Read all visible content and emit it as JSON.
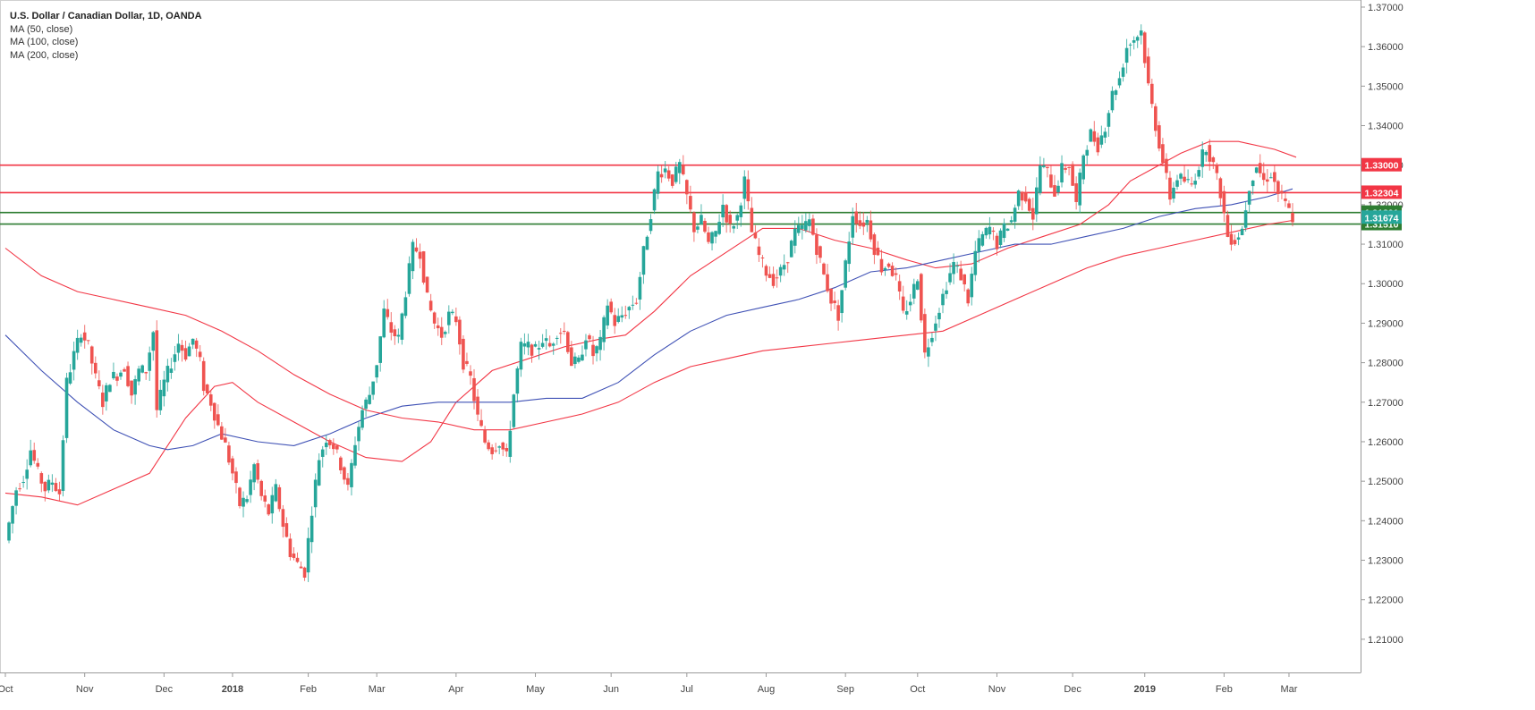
{
  "chart_data": {
    "type": "candlestick",
    "title": "U.S. Dollar / Canadian Dollar, 1D, OANDA",
    "indicators": [
      "MA (50, close)",
      "MA (100, close)",
      "MA (200, close)"
    ],
    "ylim": [
      1.2016,
      1.3718
    ],
    "y_ticks": [
      "1.37000",
      "1.36000",
      "1.35000",
      "1.34000",
      "1.33000",
      "1.32000",
      "1.31000",
      "1.30000",
      "1.29000",
      "1.28000",
      "1.27000",
      "1.26000",
      "1.25000",
      "1.24000",
      "1.23000",
      "1.22000",
      "1.21000"
    ],
    "x_ticks": [
      "Oct",
      "Nov",
      "Dec",
      "2018",
      "Feb",
      "Mar",
      "Apr",
      "May",
      "Jun",
      "Jul",
      "Aug",
      "Sep",
      "Oct",
      "Nov",
      "Dec",
      "2019",
      "Feb",
      "Mar"
    ],
    "x_tick_index": [
      0,
      22,
      44,
      63,
      84,
      103,
      125,
      147,
      168,
      189,
      211,
      233,
      253,
      275,
      296,
      316,
      338,
      356
    ],
    "x_range_bars": [
      0,
      381
    ],
    "horizontal_levels": [
      {
        "value": 1.33,
        "label": "1.33000",
        "color": "#f23645"
      },
      {
        "value": 1.32304,
        "label": "1.32304",
        "color": "#f23645"
      },
      {
        "value": 1.31801,
        "label": "1.31801",
        "color": "#2e7d32"
      },
      {
        "value": 1.3151,
        "label": "1.31510",
        "color": "#2e7d32"
      }
    ],
    "current_price": {
      "value": 1.31674,
      "label": "1.31674",
      "color": "#26a69a"
    },
    "close_series": [
      [
        0,
        1.235
      ],
      [
        3,
        1.248
      ],
      [
        5,
        1.251
      ],
      [
        7,
        1.258
      ],
      [
        9,
        1.252
      ],
      [
        11,
        1.248
      ],
      [
        13,
        1.25
      ],
      [
        15,
        1.247
      ],
      [
        17,
        1.275
      ],
      [
        19,
        1.282
      ],
      [
        21,
        1.288
      ],
      [
        23,
        1.284
      ],
      [
        25,
        1.276
      ],
      [
        27,
        1.27
      ],
      [
        29,
        1.276
      ],
      [
        31,
        1.277
      ],
      [
        33,
        1.279
      ],
      [
        35,
        1.272
      ],
      [
        37,
        1.278
      ],
      [
        39,
        1.278
      ],
      [
        41,
        1.288
      ],
      [
        42,
        1.268
      ],
      [
        44,
        1.275
      ],
      [
        46,
        1.28
      ],
      [
        48,
        1.285
      ],
      [
        50,
        1.282
      ],
      [
        52,
        1.286
      ],
      [
        54,
        1.28
      ],
      [
        55,
        1.274
      ],
      [
        57,
        1.27
      ],
      [
        59,
        1.264
      ],
      [
        61,
        1.259
      ],
      [
        63,
        1.252
      ],
      [
        65,
        1.244
      ],
      [
        67,
        1.246
      ],
      [
        69,
        1.254
      ],
      [
        71,
        1.246
      ],
      [
        73,
        1.242
      ],
      [
        75,
        1.248
      ],
      [
        77,
        1.239
      ],
      [
        79,
        1.232
      ],
      [
        81,
        1.229
      ],
      [
        83,
        1.227
      ],
      [
        85,
        1.243
      ],
      [
        87,
        1.256
      ],
      [
        89,
        1.261
      ],
      [
        91,
        1.259
      ],
      [
        93,
        1.254
      ],
      [
        95,
        1.248
      ],
      [
        97,
        1.26
      ],
      [
        99,
        1.268
      ],
      [
        101,
        1.272
      ],
      [
        103,
        1.28
      ],
      [
        105,
        1.293
      ],
      [
        107,
        1.288
      ],
      [
        109,
        1.286
      ],
      [
        111,
        1.298
      ],
      [
        113,
        1.309
      ],
      [
        115,
        1.308
      ],
      [
        117,
        1.296
      ],
      [
        119,
        1.29
      ],
      [
        121,
        1.287
      ],
      [
        123,
        1.292
      ],
      [
        125,
        1.291
      ],
      [
        127,
        1.28
      ],
      [
        129,
        1.276
      ],
      [
        131,
        1.266
      ],
      [
        133,
        1.26
      ],
      [
        135,
        1.258
      ],
      [
        137,
        1.26
      ],
      [
        139,
        1.256
      ],
      [
        141,
        1.272
      ],
      [
        143,
        1.284
      ],
      [
        145,
        1.284
      ],
      [
        147,
        1.283
      ],
      [
        149,
        1.286
      ],
      [
        151,
        1.284
      ],
      [
        153,
        1.288
      ],
      [
        155,
        1.288
      ],
      [
        157,
        1.28
      ],
      [
        159,
        1.28
      ],
      [
        161,
        1.287
      ],
      [
        163,
        1.282
      ],
      [
        165,
        1.285
      ],
      [
        167,
        1.295
      ],
      [
        169,
        1.29
      ],
      [
        171,
        1.292
      ],
      [
        173,
        1.294
      ],
      [
        175,
        1.296
      ],
      [
        177,
        1.308
      ],
      [
        179,
        1.318
      ],
      [
        181,
        1.328
      ],
      [
        183,
        1.329
      ],
      [
        185,
        1.326
      ],
      [
        187,
        1.33
      ],
      [
        189,
        1.322
      ],
      [
        191,
        1.314
      ],
      [
        193,
        1.316
      ],
      [
        195,
        1.31
      ],
      [
        197,
        1.313
      ],
      [
        199,
        1.32
      ],
      [
        201,
        1.314
      ],
      [
        203,
        1.317
      ],
      [
        205,
        1.326
      ],
      [
        207,
        1.313
      ],
      [
        209,
        1.307
      ],
      [
        211,
        1.303
      ],
      [
        213,
        1.301
      ],
      [
        215,
        1.303
      ],
      [
        217,
        1.307
      ],
      [
        219,
        1.313
      ],
      [
        221,
        1.314
      ],
      [
        223,
        1.316
      ],
      [
        225,
        1.309
      ],
      [
        227,
        1.302
      ],
      [
        229,
        1.296
      ],
      [
        231,
        1.292
      ],
      [
        233,
        1.305
      ],
      [
        235,
        1.318
      ],
      [
        237,
        1.315
      ],
      [
        239,
        1.316
      ],
      [
        241,
        1.309
      ],
      [
        243,
        1.304
      ],
      [
        245,
        1.305
      ],
      [
        247,
        1.301
      ],
      [
        249,
        1.292
      ],
      [
        251,
        1.296
      ],
      [
        253,
        1.302
      ],
      [
        255,
        1.282
      ],
      [
        257,
        1.288
      ],
      [
        259,
        1.294
      ],
      [
        261,
        1.3
      ],
      [
        263,
        1.305
      ],
      [
        265,
        1.302
      ],
      [
        267,
        1.296
      ],
      [
        269,
        1.308
      ],
      [
        271,
        1.312
      ],
      [
        273,
        1.314
      ],
      [
        275,
        1.31
      ],
      [
        277,
        1.314
      ],
      [
        279,
        1.316
      ],
      [
        281,
        1.323
      ],
      [
        283,
        1.322
      ],
      [
        285,
        1.317
      ],
      [
        287,
        1.33
      ],
      [
        289,
        1.328
      ],
      [
        291,
        1.323
      ],
      [
        293,
        1.329
      ],
      [
        295,
        1.33
      ],
      [
        297,
        1.32
      ],
      [
        299,
        1.333
      ],
      [
        301,
        1.338
      ],
      [
        303,
        1.335
      ],
      [
        305,
        1.34
      ],
      [
        307,
        1.348
      ],
      [
        309,
        1.352
      ],
      [
        311,
        1.36
      ],
      [
        313,
        1.362
      ],
      [
        315,
        1.364
      ],
      [
        317,
        1.35
      ],
      [
        319,
        1.34
      ],
      [
        321,
        1.331
      ],
      [
        323,
        1.322
      ],
      [
        325,
        1.327
      ],
      [
        327,
        1.326
      ],
      [
        329,
        1.325
      ],
      [
        331,
        1.33
      ],
      [
        333,
        1.335
      ],
      [
        335,
        1.33
      ],
      [
        337,
        1.323
      ],
      [
        339,
        1.312
      ],
      [
        341,
        1.311
      ],
      [
        343,
        1.314
      ],
      [
        345,
        1.325
      ],
      [
        347,
        1.33
      ],
      [
        349,
        1.326
      ],
      [
        351,
        1.328
      ],
      [
        353,
        1.323
      ],
      [
        355,
        1.32
      ],
      [
        357,
        1.3167
      ]
    ],
    "ma_series": [
      {
        "name": "MA (50, close)",
        "color": "#f23645",
        "points": [
          [
            0,
            1.247
          ],
          [
            10,
            1.246
          ],
          [
            20,
            1.244
          ],
          [
            30,
            1.248
          ],
          [
            40,
            1.252
          ],
          [
            50,
            1.266
          ],
          [
            58,
            1.274
          ],
          [
            63,
            1.275
          ],
          [
            70,
            1.27
          ],
          [
            80,
            1.265
          ],
          [
            90,
            1.26
          ],
          [
            100,
            1.256
          ],
          [
            110,
            1.255
          ],
          [
            118,
            1.26
          ],
          [
            125,
            1.27
          ],
          [
            135,
            1.278
          ],
          [
            145,
            1.281
          ],
          [
            155,
            1.284
          ],
          [
            165,
            1.286
          ],
          [
            172,
            1.287
          ],
          [
            180,
            1.293
          ],
          [
            190,
            1.302
          ],
          [
            200,
            1.308
          ],
          [
            210,
            1.314
          ],
          [
            220,
            1.314
          ],
          [
            230,
            1.311
          ],
          [
            240,
            1.309
          ],
          [
            250,
            1.306
          ],
          [
            258,
            1.304
          ],
          [
            268,
            1.305
          ],
          [
            278,
            1.309
          ],
          [
            288,
            1.312
          ],
          [
            298,
            1.315
          ],
          [
            306,
            1.32
          ],
          [
            312,
            1.326
          ],
          [
            318,
            1.329
          ],
          [
            326,
            1.333
          ],
          [
            334,
            1.336
          ],
          [
            342,
            1.336
          ],
          [
            352,
            1.334
          ],
          [
            358,
            1.332
          ]
        ]
      },
      {
        "name": "MA (100, close)",
        "color": "#3f51b5",
        "points": [
          [
            0,
            1.287
          ],
          [
            10,
            1.278
          ],
          [
            20,
            1.27
          ],
          [
            30,
            1.263
          ],
          [
            40,
            1.259
          ],
          [
            45,
            1.258
          ],
          [
            52,
            1.259
          ],
          [
            60,
            1.262
          ],
          [
            70,
            1.26
          ],
          [
            80,
            1.259
          ],
          [
            90,
            1.262
          ],
          [
            100,
            1.266
          ],
          [
            110,
            1.269
          ],
          [
            120,
            1.27
          ],
          [
            130,
            1.27
          ],
          [
            140,
            1.27
          ],
          [
            150,
            1.271
          ],
          [
            160,
            1.271
          ],
          [
            170,
            1.275
          ],
          [
            180,
            1.282
          ],
          [
            190,
            1.288
          ],
          [
            200,
            1.292
          ],
          [
            210,
            1.294
          ],
          [
            220,
            1.296
          ],
          [
            230,
            1.299
          ],
          [
            240,
            1.303
          ],
          [
            250,
            1.304
          ],
          [
            260,
            1.306
          ],
          [
            270,
            1.308
          ],
          [
            280,
            1.31
          ],
          [
            290,
            1.31
          ],
          [
            300,
            1.312
          ],
          [
            310,
            1.314
          ],
          [
            320,
            1.317
          ],
          [
            330,
            1.319
          ],
          [
            340,
            1.32
          ],
          [
            350,
            1.322
          ],
          [
            357,
            1.324
          ]
        ]
      },
      {
        "name": "MA (200, close)",
        "color": "#f23645",
        "points": [
          [
            0,
            1.309
          ],
          [
            10,
            1.302
          ],
          [
            20,
            1.298
          ],
          [
            30,
            1.296
          ],
          [
            40,
            1.294
          ],
          [
            50,
            1.292
          ],
          [
            60,
            1.288
          ],
          [
            70,
            1.283
          ],
          [
            80,
            1.277
          ],
          [
            90,
            1.272
          ],
          [
            100,
            1.268
          ],
          [
            110,
            1.266
          ],
          [
            120,
            1.265
          ],
          [
            130,
            1.263
          ],
          [
            140,
            1.263
          ],
          [
            150,
            1.265
          ],
          [
            160,
            1.267
          ],
          [
            170,
            1.27
          ],
          [
            180,
            1.275
          ],
          [
            190,
            1.279
          ],
          [
            200,
            1.281
          ],
          [
            210,
            1.283
          ],
          [
            220,
            1.284
          ],
          [
            230,
            1.285
          ],
          [
            240,
            1.286
          ],
          [
            250,
            1.287
          ],
          [
            260,
            1.288
          ],
          [
            270,
            1.292
          ],
          [
            280,
            1.296
          ],
          [
            290,
            1.3
          ],
          [
            300,
            1.304
          ],
          [
            310,
            1.307
          ],
          [
            320,
            1.309
          ],
          [
            330,
            1.311
          ],
          [
            340,
            1.313
          ],
          [
            350,
            1.315
          ],
          [
            357,
            1.316
          ]
        ]
      }
    ],
    "bull_color": "#26a69a",
    "bear_color": "#ef5350"
  }
}
